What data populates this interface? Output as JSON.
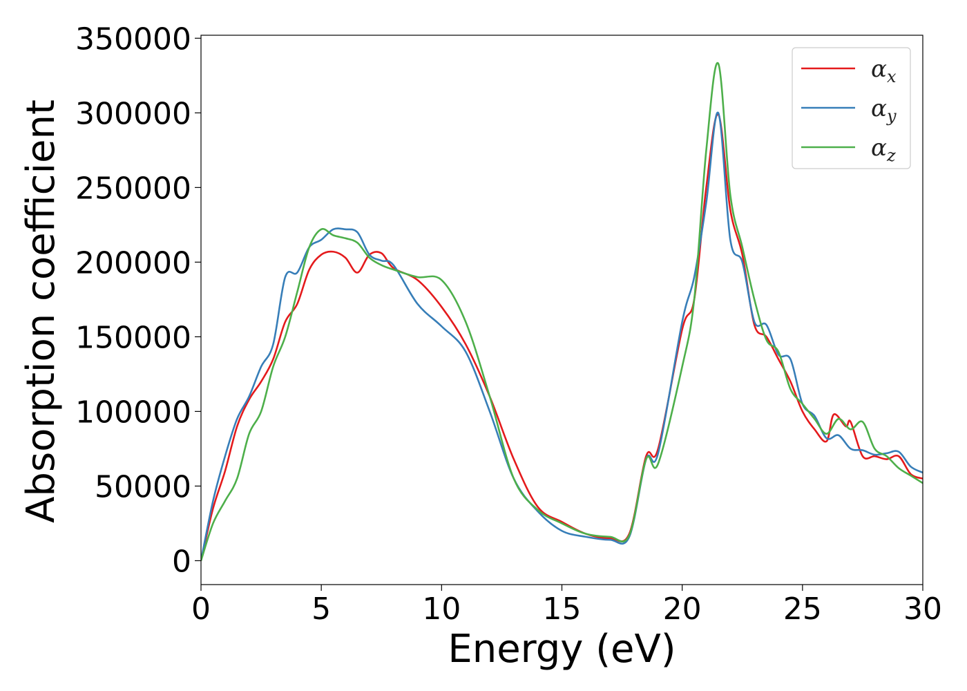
{
  "chart_data": {
    "type": "line",
    "xlabel": "Energy (eV)",
    "ylabel": "Absorption coefficient",
    "xlim": [
      0,
      30
    ],
    "ylim": [
      -16000,
      352000
    ],
    "xticks": [
      0,
      5,
      10,
      15,
      20,
      25,
      30
    ],
    "yticks": [
      0,
      50000,
      100000,
      150000,
      200000,
      250000,
      300000,
      350000
    ],
    "grid": false,
    "legend_position": "top-right",
    "series": [
      {
        "name": "α_x",
        "symbol": "α",
        "subscript": "x",
        "color": "#e41a1c",
        "x": [
          0,
          0.5,
          1,
          1.5,
          2,
          2.5,
          3,
          3.5,
          4,
          4.5,
          5,
          5.5,
          6,
          6.5,
          7,
          7.5,
          8,
          9,
          10,
          11,
          12,
          13,
          14,
          15,
          16,
          17,
          17.8,
          18.5,
          19,
          20,
          20.5,
          21,
          21.5,
          22,
          22.5,
          23,
          23.5,
          24,
          24.5,
          25,
          25.5,
          26,
          26.3,
          26.8,
          27,
          27.5,
          28,
          28.5,
          29,
          29.5,
          30
        ],
        "y": [
          0,
          35000,
          60000,
          90000,
          108000,
          120000,
          135000,
          160000,
          172000,
          195000,
          205000,
          207000,
          203000,
          193000,
          205000,
          206000,
          196000,
          188000,
          170000,
          145000,
          110000,
          68000,
          36000,
          26000,
          18000,
          15000,
          18000,
          70000,
          75000,
          155000,
          175000,
          250000,
          299000,
          235000,
          205000,
          158000,
          150000,
          135000,
          120000,
          100000,
          88000,
          80000,
          98000,
          90000,
          93000,
          70000,
          70000,
          68000,
          70000,
          58000,
          55000
        ]
      },
      {
        "name": "α_y",
        "symbol": "α",
        "subscript": "y",
        "color": "#377eb8",
        "x": [
          0,
          0.5,
          1,
          1.5,
          2,
          2.5,
          3,
          3.5,
          4,
          4.5,
          5,
          5.5,
          6,
          6.5,
          7,
          7.5,
          8,
          9,
          10,
          11,
          12,
          13,
          14,
          15,
          16,
          17,
          17.8,
          18.5,
          19,
          20,
          20.5,
          21,
          21.5,
          22,
          22.5,
          23,
          23.5,
          24,
          24.5,
          25,
          25.5,
          26,
          26.5,
          27,
          27.5,
          28,
          28.5,
          29,
          29.5,
          30
        ],
        "y": [
          0,
          40000,
          70000,
          95000,
          110000,
          130000,
          145000,
          190000,
          193000,
          210000,
          215000,
          222000,
          222000,
          220000,
          205000,
          201000,
          198000,
          172000,
          157000,
          140000,
          100000,
          55000,
          33000,
          20000,
          16000,
          14000,
          16000,
          68000,
          72000,
          160000,
          190000,
          240000,
          300000,
          215000,
          200000,
          160000,
          158000,
          138000,
          135000,
          105000,
          97000,
          82000,
          84000,
          75000,
          74000,
          71000,
          72000,
          73000,
          63000,
          59000
        ]
      },
      {
        "name": "α_z",
        "symbol": "α",
        "subscript": "z",
        "color": "#4daf4a",
        "x": [
          0,
          0.5,
          1,
          1.5,
          2,
          2.5,
          3,
          3.5,
          4,
          4.5,
          5,
          5.5,
          6,
          6.5,
          7,
          7.5,
          8,
          9,
          10,
          11,
          12,
          13,
          14,
          15,
          16,
          17,
          17.8,
          18.5,
          19,
          20,
          20.5,
          21,
          21.5,
          22,
          22.5,
          23,
          23.5,
          24,
          24.5,
          25,
          25.5,
          26,
          26.5,
          27,
          27.5,
          28,
          28.5,
          29,
          29.5,
          30
        ],
        "y": [
          0,
          25000,
          40000,
          55000,
          85000,
          100000,
          130000,
          150000,
          180000,
          210000,
          222000,
          218000,
          216000,
          213000,
          203000,
          198000,
          195000,
          190000,
          188000,
          160000,
          110000,
          55000,
          34000,
          25000,
          18000,
          16000,
          17000,
          68000,
          65000,
          130000,
          175000,
          275000,
          333000,
          245000,
          210000,
          175000,
          148000,
          140000,
          115000,
          105000,
          95000,
          85000,
          95000,
          88000,
          93000,
          75000,
          70000,
          62000,
          57000,
          52000
        ]
      }
    ]
  }
}
